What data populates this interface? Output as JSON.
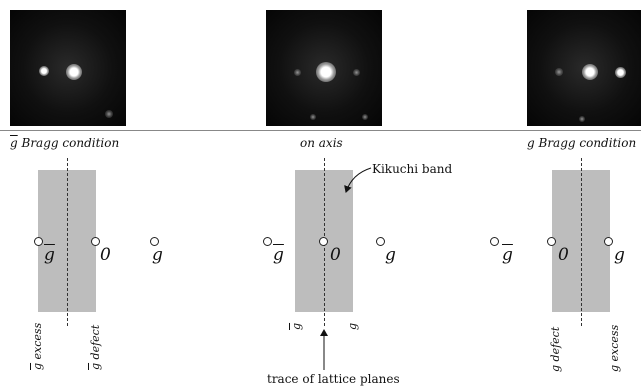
{
  "captions": {
    "left_g": "g",
    "left_rest": " Bragg condition",
    "center": "on axis",
    "right": "g Bragg condition"
  },
  "points": {
    "left": [
      {
        "sym": "g",
        "overline": true
      },
      {
        "sym": "0",
        "overline": false
      },
      {
        "sym": "g",
        "overline": false
      }
    ],
    "center": [
      {
        "sym": "g",
        "overline": true
      },
      {
        "sym": "0",
        "overline": false
      },
      {
        "sym": "g",
        "overline": false
      }
    ],
    "right": [
      {
        "sym": "g",
        "overline": true
      },
      {
        "sym": "0",
        "overline": false
      },
      {
        "sym": "g",
        "overline": false
      }
    ]
  },
  "vertical_labels": {
    "left_excess_g": "g",
    "left_excess": " excess",
    "left_defect_g": "g",
    "left_defect": " defect",
    "center_left": "g",
    "center_right": "g",
    "right_defect": "g defect",
    "right_excess": "g excess"
  },
  "annotations": {
    "kikuchi_band": "Kikuchi band",
    "trace": "trace of lattice planes"
  },
  "colors": {
    "band": "#bdbdbd",
    "pattern_bg": "#0b0b0b",
    "spot": "#ffffff"
  }
}
